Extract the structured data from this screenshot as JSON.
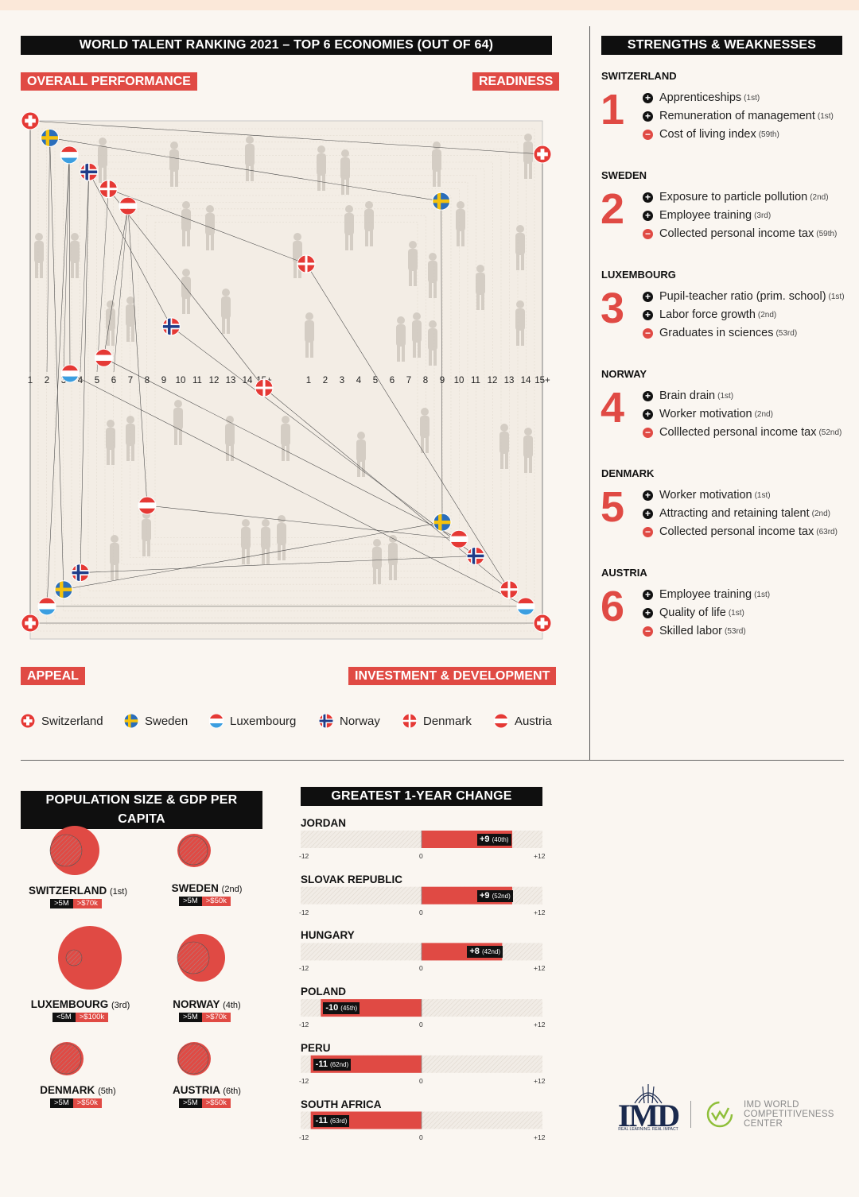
{
  "main": {
    "title": "WORLD TALENT RANKING 2021 – TOP 6 ECONOMIES (OUT OF 64)",
    "label_tl": "OVERALL PERFORMANCE",
    "label_tr": "READINESS",
    "label_bl": "APPEAL",
    "label_br": "INVESTMENT & DEVELOPMENT"
  },
  "strengths": {
    "title": "STRENGTHS & WEAKNESSES",
    "countries": [
      {
        "name": "SWITZERLAND",
        "rank": "1",
        "items": [
          {
            "type": "plus",
            "text": "Apprenticeships",
            "rank": "(1st)"
          },
          {
            "type": "plus",
            "text": "Remuneration of management",
            "rank": "(1st)"
          },
          {
            "type": "minus",
            "text": "Cost of living index",
            "rank": "(59th)"
          }
        ]
      },
      {
        "name": "SWEDEN",
        "rank": "2",
        "items": [
          {
            "type": "plus",
            "text": "Exposure to particle pollution",
            "rank": "(2nd)"
          },
          {
            "type": "plus",
            "text": "Employee training",
            "rank": "(3rd)"
          },
          {
            "type": "minus",
            "text": "Collected personal income tax",
            "rank": "(59th)"
          }
        ]
      },
      {
        "name": "LUXEMBOURG",
        "rank": "3",
        "items": [
          {
            "type": "plus",
            "text": "Pupil-teacher ratio (prim. school)",
            "rank": "(1st)"
          },
          {
            "type": "plus",
            "text": "Labor force growth",
            "rank": "(2nd)"
          },
          {
            "type": "minus",
            "text": "Graduates in sciences",
            "rank": "(53rd)"
          }
        ]
      },
      {
        "name": "NORWAY",
        "rank": "4",
        "items": [
          {
            "type": "plus",
            "text": "Brain drain",
            "rank": "(1st)"
          },
          {
            "type": "plus",
            "text": "Worker motivation",
            "rank": "(2nd)"
          },
          {
            "type": "minus",
            "text": "Colllected personal income tax",
            "rank": "(52nd)"
          }
        ]
      },
      {
        "name": "DENMARK",
        "rank": "5",
        "items": [
          {
            "type": "plus",
            "text": "Worker motivation",
            "rank": "(1st)"
          },
          {
            "type": "plus",
            "text": "Attracting and retaining talent",
            "rank": "(2nd)"
          },
          {
            "type": "minus",
            "text": "Collected personal income tax",
            "rank": "(63rd)"
          }
        ]
      },
      {
        "name": "AUSTRIA",
        "rank": "6",
        "items": [
          {
            "type": "plus",
            "text": "Employee training",
            "rank": "(1st)"
          },
          {
            "type": "plus",
            "text": "Quality of life",
            "rank": "(1st)"
          },
          {
            "type": "minus",
            "text": "Skilled labor",
            "rank": "(53rd)"
          }
        ]
      }
    ]
  },
  "population": {
    "title": "POPULATION SIZE & GDP PER CAPITA",
    "countries": [
      {
        "name": "SWITZERLAND",
        "rank": "(1st)",
        "pop": ">5M",
        "gdp": ">$70k"
      },
      {
        "name": "SWEDEN",
        "rank": "(2nd)",
        "pop": ">5M",
        "gdp": ">$50k"
      },
      {
        "name": "LUXEMBOURG",
        "rank": "(3rd)",
        "pop": "<5M",
        "gdp": ">$100k"
      },
      {
        "name": "NORWAY",
        "rank": "(4th)",
        "pop": ">5M",
        "gdp": ">$70k"
      },
      {
        "name": "DENMARK",
        "rank": "(5th)",
        "pop": ">5M",
        "gdp": ">$50k"
      },
      {
        "name": "AUSTRIA",
        "rank": "(6th)",
        "pop": ">5M",
        "gdp": ">$50k"
      }
    ]
  },
  "change": {
    "title": "GREATEST 1-YEAR CHANGE",
    "axis": {
      "min": "-12",
      "zero": "0",
      "max": "+12"
    },
    "countries": [
      {
        "name": "JORDAN",
        "label": "+9",
        "rank": "(40th)"
      },
      {
        "name": "SLOVAK REPUBLIC",
        "label": "+9",
        "rank": "(52nd)"
      },
      {
        "name": "HUNGARY",
        "label": "+8",
        "rank": "(42nd)"
      },
      {
        "name": "POLAND",
        "label": "-10",
        "rank": "(45th)"
      },
      {
        "name": "PERU",
        "label": "-11",
        "rank": "(62nd)"
      },
      {
        "name": "SOUTH AFRICA",
        "label": "-11",
        "rank": "(63rd)"
      }
    ]
  },
  "logo": {
    "imd": "IMD",
    "imd_tag": "REAL LEARNING. REAL IMPACT",
    "wcc1": "IMD WORLD",
    "wcc2": "COMPETITIVENESS",
    "wcc3": "CENTER"
  },
  "colors": {
    "accent": "#e04a44",
    "dark": "#0f0f0f",
    "background": "#faf6f1"
  },
  "chart_data": [
    {
      "type": "scatter",
      "title": "WORLD TALENT RANKING 2021 – TOP 6 ECONOMIES (OUT OF 64)",
      "quadrants": [
        "OVERALL PERFORMANCE",
        "READINESS",
        "APPEAL",
        "INVESTMENT & DEVELOPMENT"
      ],
      "left_ticks": [
        "1",
        "2",
        "3",
        "4",
        "5",
        "6",
        "7",
        "8",
        "9",
        "10",
        "11",
        "12",
        "13",
        "14",
        "15+"
      ],
      "right_ticks": [
        "15+",
        "14",
        "13",
        "12",
        "11",
        "10",
        "9",
        "8",
        "7",
        "6",
        "5",
        "4",
        "3",
        "2",
        "1"
      ],
      "series": [
        {
          "name": "Switzerland",
          "flag": "switzerland",
          "overall": 1,
          "readiness": 1,
          "appeal": 1,
          "investment": 1
        },
        {
          "name": "Sweden",
          "flag": "sweden",
          "overall": 2,
          "readiness": 4,
          "appeal": 3,
          "investment": 7
        },
        {
          "name": "Luxembourg",
          "flag": "luxembourg",
          "overall": 3,
          "readiness": 15,
          "appeal": 2,
          "investment": 2
        },
        {
          "name": "Norway",
          "flag": "norway",
          "overall": 4,
          "readiness": 12,
          "appeal": 4,
          "investment": 5
        },
        {
          "name": "Denmark",
          "flag": "denmark",
          "overall": 5,
          "readiness": 8,
          "appeal": 15,
          "investment": 3
        },
        {
          "name": "Austria",
          "flag": "austria",
          "overall": 6,
          "readiness": 14,
          "appeal": 8,
          "investment": 6
        }
      ],
      "legend": [
        "Switzerland",
        "Sweden",
        "Luxembourg",
        "Norway",
        "Denmark",
        "Austria"
      ],
      "legend_position": "bottom"
    },
    {
      "type": "bar",
      "title": "GREATEST 1-YEAR CHANGE",
      "categories": [
        "JORDAN",
        "SLOVAK REPUBLIC",
        "HUNGARY",
        "POLAND",
        "PERU",
        "SOUTH AFRICA"
      ],
      "values": [
        9,
        9,
        8,
        -10,
        -11,
        -11
      ],
      "xlim": [
        -12,
        12
      ]
    }
  ]
}
